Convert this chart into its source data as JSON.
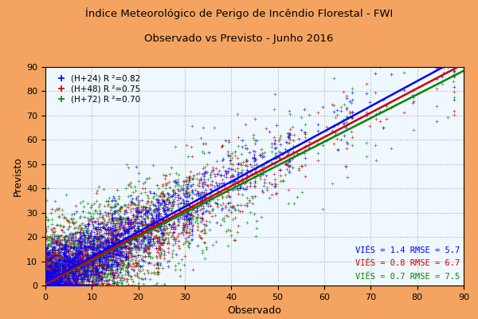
{
  "title_line1": "Índice Meteorológico de Perigo de Incêndio Florestal - FWI",
  "title_line2": "Observado vs Previsto - Junho 2016",
  "xlabel": "Observado",
  "ylabel": "Previsto",
  "xlim": [
    0,
    90
  ],
  "ylim": [
    0,
    90
  ],
  "xticks": [
    0,
    10,
    20,
    30,
    40,
    50,
    60,
    70,
    80,
    90
  ],
  "yticks": [
    0,
    10,
    20,
    30,
    40,
    50,
    60,
    70,
    80,
    90
  ],
  "background_outer": "#F4A460",
  "background_plot": "#F0F8FF",
  "grid_color": "#AAAAAA",
  "colors": {
    "h24": "#0000FF",
    "h48": "#CC0000",
    "h72": "#008800"
  },
  "legend_labels": [
    "(H+24) R ²=0.82",
    "(H+48) R ²=0.75",
    "(H+72) R ²=0.70"
  ],
  "stats_lines": [
    "VIÉ S = 1.4 RMSE = 5.7",
    "VIÉ S = 0.8 RMSE = 6.7",
    "VIÉ S = 0.7 RMSE = 7.5"
  ],
  "stats_text_h24": "VIÉS = 1.4 RMSE = 5.7",
  "stats_text_h48": "VIÉS = 0.8 RMSE = 6.7",
  "stats_text_h72": "VIÉS = 0.7 RMSE = 7.5",
  "fit_lines": {
    "h24": {
      "slope": 1.035,
      "intercept": 1.4
    },
    "h48": {
      "slope": 1.005,
      "intercept": 0.8
    },
    "h72": {
      "slope": 0.975,
      "intercept": 0.7
    }
  },
  "n_points": 2000,
  "seed": 42
}
